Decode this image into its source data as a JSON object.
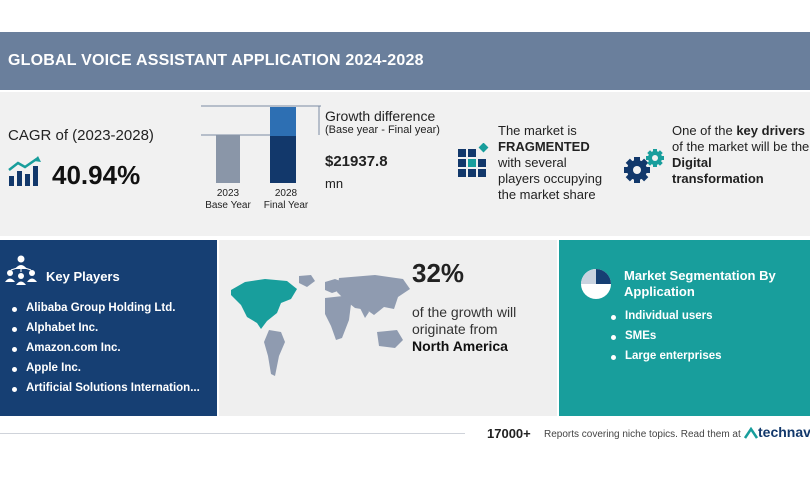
{
  "title": "GLOBAL VOICE ASSISTANT APPLICATION 2024-2028",
  "cagr": {
    "label": "CAGR of (2023-2028)",
    "value": "40.94%"
  },
  "growth_bars": {
    "base": {
      "year": "2023",
      "label": "Base Year"
    },
    "final": {
      "year": "2028",
      "label": "Final Year"
    }
  },
  "growth": {
    "title": "Growth difference",
    "subtitle": "(Base year - Final year)",
    "amount": "$21937.8",
    "unit": "mn"
  },
  "market": {
    "line1": "The market is",
    "line2": "FRAGMENTED",
    "line3": "with several",
    "line4": "players occupying",
    "line5": "the market share"
  },
  "drivers": {
    "line1_pre": "One of the ",
    "line1_bold": "key drivers",
    "line2": "of the market will be the",
    "line3": "Digital",
    "line4": "transformation"
  },
  "key_players": {
    "title": "Key Players",
    "items": [
      "Alibaba Group Holding Ltd.",
      "Alphabet Inc.",
      "Amazon.com Inc.",
      "Apple Inc.",
      "Artificial Solutions Internation..."
    ]
  },
  "region": {
    "percent": "32%",
    "line1": "of the growth will",
    "line2": "originate from",
    "line3": "North America"
  },
  "segmentation": {
    "title_line1": "Market Segmentation By",
    "title_line2": "Application",
    "items": [
      "Individual users",
      "SMEs",
      "Large enterprises"
    ]
  },
  "footer": {
    "count": "17000+",
    "text": "Reports covering niche topics. Read them at",
    "brand": "technavi"
  },
  "colors": {
    "title_bar": "#6a7f9c",
    "navy": "#163f73",
    "teal": "#189e9c",
    "light_gray": "#f1f1f1"
  }
}
